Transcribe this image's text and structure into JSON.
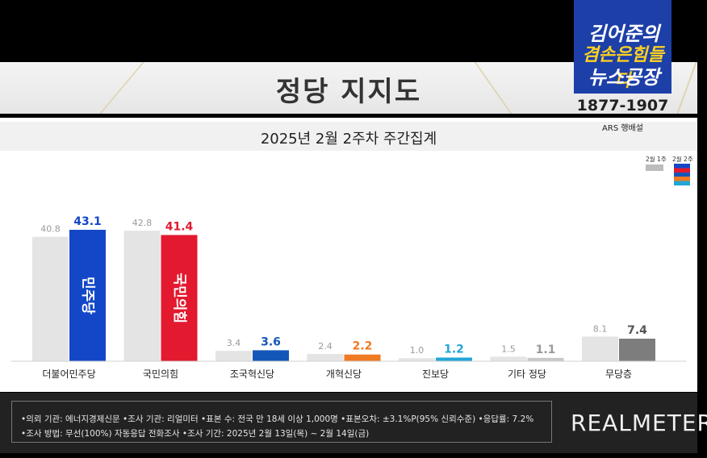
{
  "title": "정당 지지도",
  "subtitle": "2025년 2월 2주차 주간집계",
  "brand": {
    "name": "김어준의",
    "slogan": "겸손은힘들다",
    "show": "뉴스공장",
    "phone": "1877-1907",
    "ars": "ARS 행배설"
  },
  "legend": {
    "prev_label": "2월 1주",
    "curr_label": "2월 2주"
  },
  "footer": {
    "line1": "•의뢰 기관: 에너지경제신문  •조사 기관: 리얼미터  •표본 수: 전국 만 18세 이상 1,000명  •표본오차: ±3.1%P(95% 신뢰수준)  •응답률: 7.2%",
    "line2": "•조사 방법: 무선(100%) 자동응답 전화조사  •조사 기간: 2025년 2월 13일(목) ~ 2월 14일(금)",
    "logo": "REALMETER"
  },
  "colors": {
    "prev": "#e4e4e4",
    "democratic": "#1447c7",
    "ppp": "#e3192f",
    "rebuild": "#1557b8",
    "reform": "#ef7a22",
    "progressive": "#22a6d6",
    "other": "#c8c8c8",
    "none": "#7d7d7d"
  },
  "chart_data": {
    "type": "bar",
    "categories": [
      "더불어민주당",
      "국민의힘",
      "조국혁신당",
      "개혁신당",
      "진보당",
      "기타 정당",
      "무당층"
    ],
    "series": [
      {
        "name": "2월 1주",
        "values": [
          40.8,
          42.8,
          3.4,
          2.4,
          1.0,
          1.5,
          8.1
        ]
      },
      {
        "name": "2월 2주",
        "values": [
          43.1,
          41.4,
          3.6,
          2.2,
          1.2,
          1.1,
          7.4
        ]
      }
    ],
    "bar_colors": [
      "#1447c7",
      "#e3192f",
      "#1557b8",
      "#ef7a22",
      "#22a6d6",
      "#c8c8c8",
      "#7d7d7d"
    ],
    "bar_text": [
      "민주당",
      "국민의힘",
      "",
      "",
      "",
      "",
      ""
    ],
    "ylim": [
      0,
      43.1
    ],
    "grid": false,
    "legend": "top-right"
  }
}
